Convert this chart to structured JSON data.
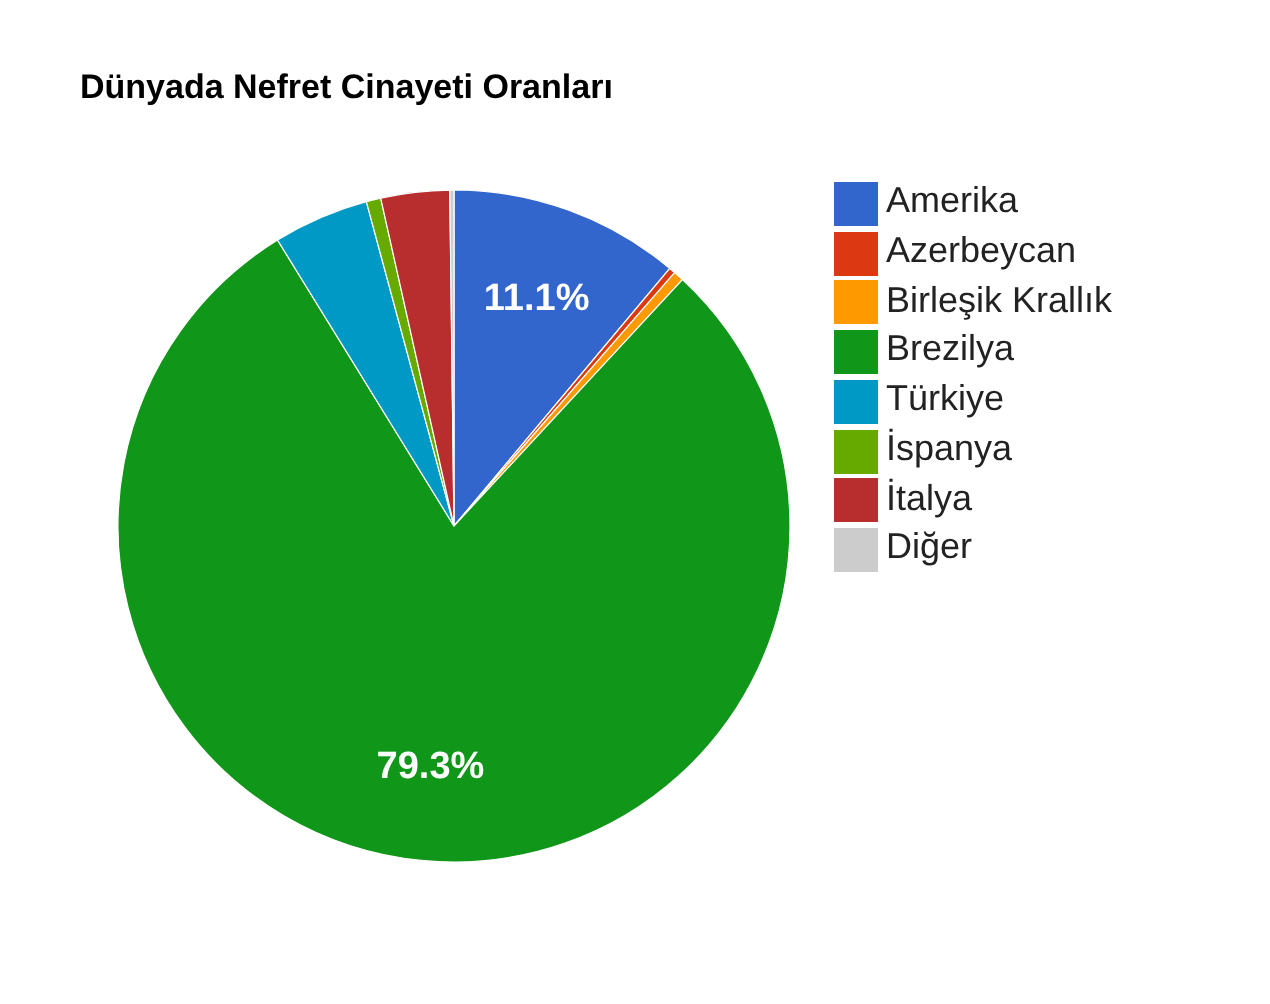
{
  "chart_data": {
    "type": "pie",
    "title": "Dünyada Nefret Cinayeti Oranları",
    "categories": [
      "Amerika",
      "Azerbeycan",
      "Birleşik Krallık",
      "Brezilya",
      "Türkiye",
      "İspanya",
      "İtalya",
      "Diğer"
    ],
    "values": [
      11.1,
      0.3,
      0.5,
      79.3,
      4.6,
      0.7,
      3.3,
      0.2
    ],
    "colors": [
      "#3366cc",
      "#dc3912",
      "#ff9900",
      "#109618",
      "#0099c6",
      "#66aa00",
      "#b82e2e",
      "#cccccc"
    ],
    "value_labels": [
      "11.1%",
      null,
      null,
      "79.3%",
      null,
      null,
      null,
      null
    ],
    "legend": "right"
  }
}
